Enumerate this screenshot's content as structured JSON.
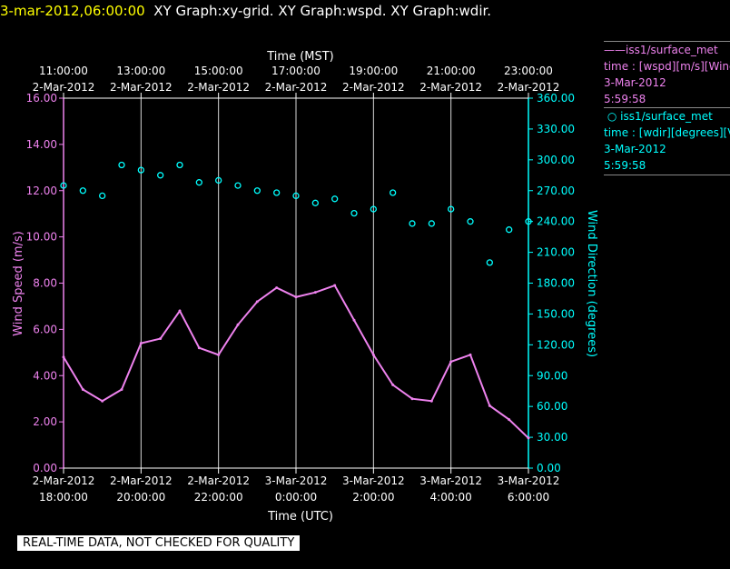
{
  "header": {
    "timestamp": "3-mar-2012,06:00:00",
    "graphs": "XY Graph:xy-grid.  XY Graph:wspd.  XY Graph:wdir."
  },
  "legend": {
    "wspd": {
      "name": "iss1/surface_met",
      "field": "time : [wspd][m/s][Wind",
      "date": "3-Mar-2012",
      "time": "5:59:58",
      "color": "#ee82ee"
    },
    "wdir": {
      "name": "iss1/surface_met",
      "field": "time : [wdir][degrees][V",
      "date": "3-Mar-2012",
      "time": "5:59:58",
      "color": "#00ffff"
    }
  },
  "footer": {
    "quality_note": "REAL-TIME DATA, NOT CHECKED FOR QUALITY"
  },
  "chart_data": {
    "type": "line",
    "top_axis": {
      "label": "Time (MST)",
      "ticks": [
        {
          "time": "11:00:00",
          "date": "2-Mar-2012"
        },
        {
          "time": "13:00:00",
          "date": "2-Mar-2012"
        },
        {
          "time": "15:00:00",
          "date": "2-Mar-2012"
        },
        {
          "time": "17:00:00",
          "date": "2-Mar-2012"
        },
        {
          "time": "19:00:00",
          "date": "2-Mar-2012"
        },
        {
          "time": "21:00:00",
          "date": "2-Mar-2012"
        },
        {
          "time": "23:00:00",
          "date": "2-Mar-2012"
        }
      ]
    },
    "bottom_axis": {
      "label": "Time (UTC)",
      "ticks": [
        {
          "date": "2-Mar-2012",
          "time": "18:00:00"
        },
        {
          "date": "2-Mar-2012",
          "time": "20:00:00"
        },
        {
          "date": "2-Mar-2012",
          "time": "22:00:00"
        },
        {
          "date": "3-Mar-2012",
          "time": "0:00:00"
        },
        {
          "date": "3-Mar-2012",
          "time": "2:00:00"
        },
        {
          "date": "3-Mar-2012",
          "time": "4:00:00"
        },
        {
          "date": "3-Mar-2012",
          "time": "6:00:00"
        }
      ]
    },
    "x_range_utc": [
      "2-Mar-2012 18:00",
      "3-Mar-2012 06:00"
    ],
    "left_axis": {
      "label": "Wind Speed (m/s)",
      "color": "#ee82ee",
      "ylim": [
        0,
        16
      ],
      "ticks": [
        "0.00",
        "2.00",
        "4.00",
        "6.00",
        "8.00",
        "10.00",
        "12.00",
        "14.00",
        "16.00"
      ]
    },
    "right_axis": {
      "label": "Wind Direction (degrees)",
      "color": "#00ffff",
      "ylim": [
        0,
        360
      ],
      "ticks": [
        "0.00",
        "30.00",
        "60.00",
        "90.00",
        "120.00",
        "150.00",
        "180.00",
        "210.00",
        "240.00",
        "270.00",
        "300.00",
        "330.00",
        "360.00"
      ]
    },
    "grid": true,
    "series": [
      {
        "name": "iss1/surface_met",
        "quantity": "wspd",
        "units": "m/s",
        "color": "#ee82ee",
        "style": "line",
        "x": [
          "2-Mar-2012 18:00",
          "2-Mar-2012 18:30",
          "2-Mar-2012 19:00",
          "2-Mar-2012 19:30",
          "2-Mar-2012 20:00",
          "2-Mar-2012 20:30",
          "2-Mar-2012 21:00",
          "2-Mar-2012 21:30",
          "2-Mar-2012 22:00",
          "2-Mar-2012 22:30",
          "2-Mar-2012 23:00",
          "2-Mar-2012 23:30",
          "3-Mar-2012 00:00",
          "3-Mar-2012 00:30",
          "3-Mar-2012 01:00",
          "3-Mar-2012 01:30",
          "3-Mar-2012 02:00",
          "3-Mar-2012 02:30",
          "3-Mar-2012 03:00",
          "3-Mar-2012 03:30",
          "3-Mar-2012 04:00",
          "3-Mar-2012 04:30",
          "3-Mar-2012 05:00",
          "3-Mar-2012 05:30",
          "3-Mar-2012 06:00"
        ],
        "y": [
          4.8,
          3.4,
          2.9,
          3.4,
          5.4,
          5.6,
          6.8,
          5.2,
          4.9,
          6.2,
          7.2,
          7.8,
          7.4,
          7.6,
          7.9,
          6.4,
          4.9,
          3.6,
          3.0,
          2.9,
          4.6,
          4.9,
          2.7,
          2.1,
          1.3
        ]
      },
      {
        "name": "iss1/surface_met",
        "quantity": "wdir",
        "units": "degrees",
        "color": "#00ffff",
        "style": "markers",
        "x": [
          "2-Mar-2012 18:00",
          "2-Mar-2012 18:30",
          "2-Mar-2012 19:00",
          "2-Mar-2012 19:30",
          "2-Mar-2012 20:00",
          "2-Mar-2012 20:30",
          "2-Mar-2012 21:00",
          "2-Mar-2012 21:30",
          "2-Mar-2012 22:00",
          "2-Mar-2012 22:30",
          "2-Mar-2012 23:00",
          "2-Mar-2012 23:30",
          "3-Mar-2012 00:00",
          "3-Mar-2012 00:30",
          "3-Mar-2012 01:00",
          "3-Mar-2012 01:30",
          "3-Mar-2012 02:00",
          "3-Mar-2012 02:30",
          "3-Mar-2012 03:00",
          "3-Mar-2012 03:30",
          "3-Mar-2012 04:00",
          "3-Mar-2012 04:30",
          "3-Mar-2012 05:00",
          "3-Mar-2012 05:30",
          "3-Mar-2012 06:00"
        ],
        "y": [
          275,
          270,
          265,
          295,
          290,
          285,
          295,
          278,
          280,
          275,
          270,
          268,
          265,
          258,
          262,
          248,
          252,
          268,
          238,
          238,
          252,
          240,
          200,
          232,
          240
        ]
      }
    ]
  }
}
